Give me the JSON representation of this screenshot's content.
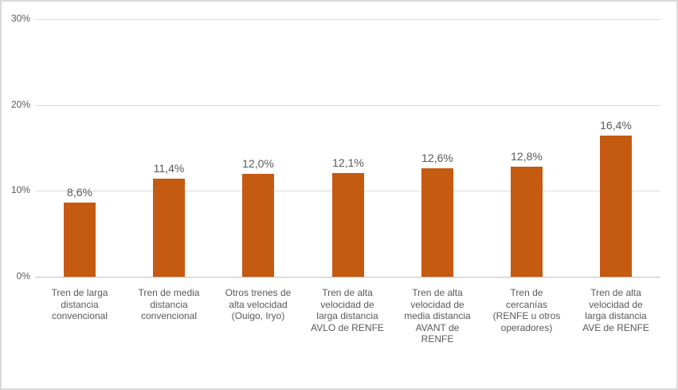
{
  "chart_data": {
    "type": "bar",
    "title": "",
    "xlabel": "",
    "ylabel": "",
    "categories": [
      "Tren de larga\ndistancia\nconvencional",
      "Tren de media\ndistancia\nconvencional",
      "Otros trenes de\nalta velocidad\n(Ouigo, Iryo)",
      "Tren de alta\nvelocidad de\nlarga distancia\nAVLO de RENFE",
      "Tren de alta\nvelocidad de\nmedia distancia\nAVANT de\nRENFE",
      "Tren de\ncercanías\n(RENFE u otros\noperadores)",
      "Tren de alta\nvelocidad de\nlarga distancia\nAVE de RENFE"
    ],
    "values": [
      8.6,
      11.4,
      12.0,
      12.1,
      12.6,
      12.8,
      16.4
    ],
    "value_labels": [
      "8,6%",
      "11,4%",
      "12,0%",
      "12,1%",
      "12,6%",
      "12,8%",
      "16,4%"
    ],
    "y_ticks": [
      {
        "value": 0,
        "label": "0%"
      },
      {
        "value": 10,
        "label": "10%"
      },
      {
        "value": 20,
        "label": "20%"
      },
      {
        "value": 30,
        "label": "30%"
      }
    ],
    "ylim": [
      0,
      30
    ],
    "grid": true,
    "legend_position": "none",
    "colors": {
      "bar": "#C55A11",
      "text": "#595959",
      "gridline": "#D9D9D9",
      "axis_line": "#BFBFBF",
      "frame_border": "#D9D9D9",
      "background": "#FFFFFF"
    }
  }
}
